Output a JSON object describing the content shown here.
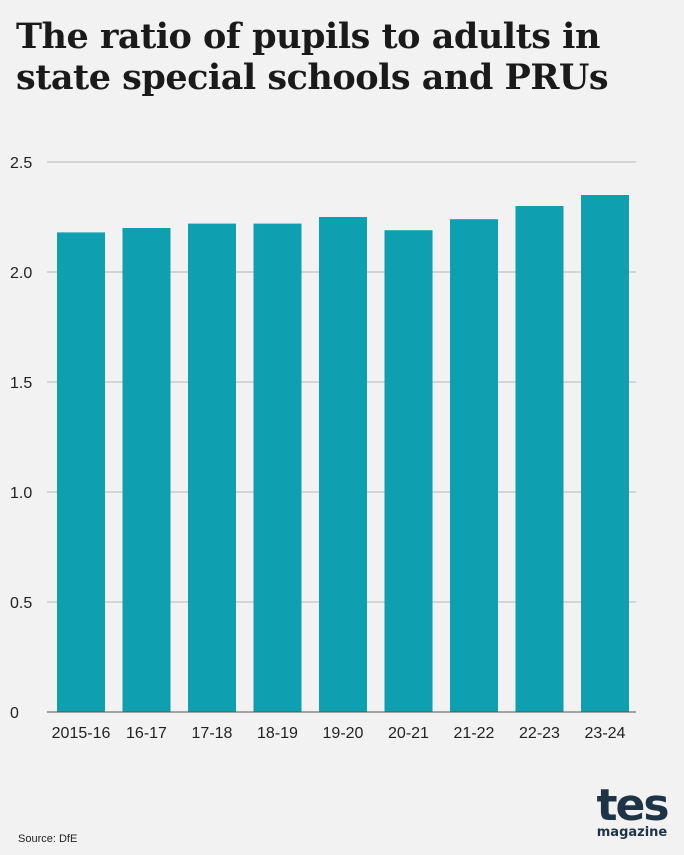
{
  "chart_data": {
    "type": "bar",
    "title": "The ratio of pupils to adults in state special schools and PRUs",
    "xlabel": "",
    "ylabel": "",
    "categories": [
      "2015-16",
      "16-17",
      "17-18",
      "18-19",
      "19-20",
      "20-21",
      "21-22",
      "22-23",
      "23-24"
    ],
    "values": [
      2.18,
      2.2,
      2.22,
      2.22,
      2.25,
      2.19,
      2.24,
      2.3,
      2.35
    ],
    "ylim": [
      0,
      2.5
    ],
    "yticks": [
      0,
      0.5,
      1.0,
      1.5,
      2.0,
      2.5
    ],
    "ytick_labels": [
      "0",
      "0.5",
      "1.0",
      "1.5",
      "2.0",
      "2.5"
    ],
    "grid": true,
    "bar_color": "#0e9fb0"
  },
  "source": "Source: DfE",
  "logo": {
    "word": "tes",
    "sub": "magazine"
  }
}
